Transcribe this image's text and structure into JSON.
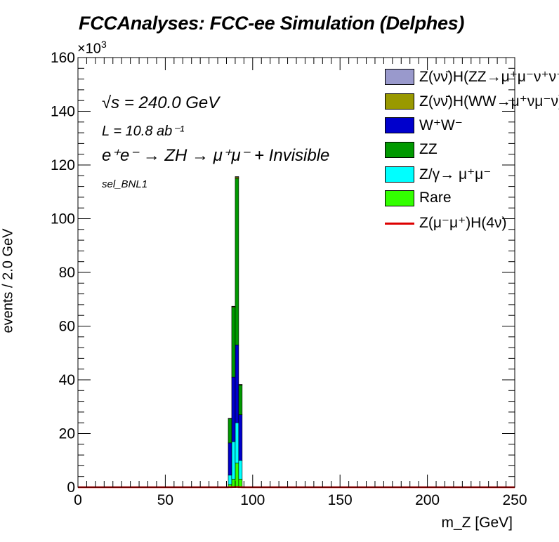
{
  "title": "FCCAnalyses: FCC-ee Simulation (Delphes)",
  "y_exponent": "×10",
  "y_exponent_power": "3",
  "annotations": {
    "sqrt_s": "√s = 240.0 GeV",
    "lumi": "L = 10.8 ab⁻¹",
    "process": "e⁺e⁻ → ZH → μ⁺μ⁻ + Invisible",
    "selection": "sel_BNL1"
  },
  "legend": [
    {
      "label": "Z(νν̄)H(ZZ→μ⁺μ⁻ν⁺ν⁻)",
      "color": "#9999cc",
      "style": "fill"
    },
    {
      "label": "Z(νν̄)H(WW→μ⁺νμ⁻ν)",
      "color": "#999900",
      "style": "fill"
    },
    {
      "label": "W⁺W⁻",
      "color": "#0000cc",
      "style": "fill"
    },
    {
      "label": "ZZ",
      "color": "#009900",
      "style": "fill"
    },
    {
      "label": "Z/γ→ μ⁺μ⁻",
      "color": "#00ffff",
      "style": "fill"
    },
    {
      "label": "Rare",
      "color": "#33ff00",
      "style": "fill"
    },
    {
      "label": "Z(μ⁻μ⁺)H(4ν)",
      "color": "#dd0000",
      "style": "line"
    }
  ],
  "chart_data": {
    "type": "bar",
    "stacked": true,
    "histogram": true,
    "bin_width": 2.0,
    "xlabel": "m_Z [GeV]",
    "ylabel": "events / 2.0 GeV",
    "xlim": [
      0,
      250
    ],
    "ylim": [
      0,
      160000
    ],
    "x_ticks": [
      0,
      50,
      100,
      150,
      200,
      250
    ],
    "y_ticks": [
      0,
      20,
      40,
      60,
      80,
      100,
      120,
      140,
      160
    ],
    "grid": false,
    "legend_position": "top-right",
    "bin_edges": [
      86,
      88,
      90,
      92,
      94
    ],
    "series": [
      {
        "name": "Rare",
        "color": "#33ff00",
        "values": [
          1000,
          3000,
          9000,
          3000
        ]
      },
      {
        "name": "Z/γ→ μ⁺μ⁻",
        "color": "#00ffff",
        "values": [
          3500,
          14000,
          15000,
          7000
        ]
      },
      {
        "name": "W⁺W⁻",
        "color": "#0000cc",
        "values": [
          12000,
          24000,
          29000,
          17000
        ]
      },
      {
        "name": "ZZ",
        "color": "#009900",
        "values": [
          9000,
          26000,
          62000,
          11000
        ]
      },
      {
        "name": "Z(νν̄)H(WW→μ⁺νμ⁻ν)",
        "color": "#999900",
        "values": [
          100,
          300,
          500,
          200
        ]
      },
      {
        "name": "Z(νν̄)H(ZZ→μ⁺μ⁻ν⁺ν⁻)",
        "color": "#9999cc",
        "values": [
          50,
          100,
          200,
          100
        ]
      }
    ],
    "signal_line": {
      "name": "Z(μ⁻μ⁺)H(4ν)",
      "color": "#dd0000",
      "values": [
        20,
        60,
        90,
        40
      ]
    }
  }
}
